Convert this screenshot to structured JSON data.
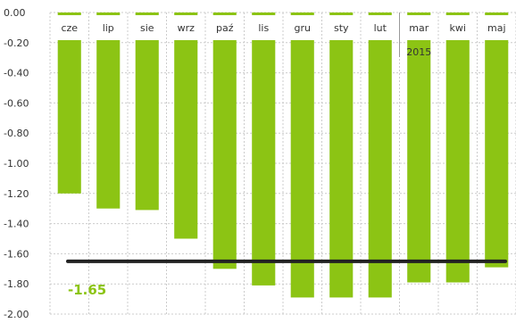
{
  "chart_data": {
    "type": "bar",
    "categories": [
      "cze",
      "lip",
      "sie",
      "wrz",
      "paź",
      "lis",
      "gru",
      "sty",
      "lut",
      "mar",
      "kwi",
      "maj"
    ],
    "values": [
      -1.2,
      -1.3,
      -1.31,
      -1.5,
      -1.7,
      -1.81,
      -1.89,
      -1.89,
      -1.89,
      -1.79,
      -1.79,
      -1.69
    ],
    "year_marker": {
      "category": "mar",
      "label": "2015"
    },
    "reference_line": {
      "value": -1.65,
      "label": "-1.65"
    },
    "ylim": [
      -2.0,
      0.0
    ],
    "yticks": [
      "0.00",
      "-0.20",
      "-0.40",
      "-0.60",
      "-0.80",
      "-1.00",
      "-1.20",
      "-1.40",
      "-1.60",
      "-1.80",
      "-2.00"
    ],
    "title": "",
    "xlabel": "",
    "ylabel": "",
    "grid": true,
    "colors": {
      "bar": "#8cc414",
      "reference_line": "#222222",
      "reference_label": "#8cc414",
      "grid": "#cccccc"
    }
  }
}
